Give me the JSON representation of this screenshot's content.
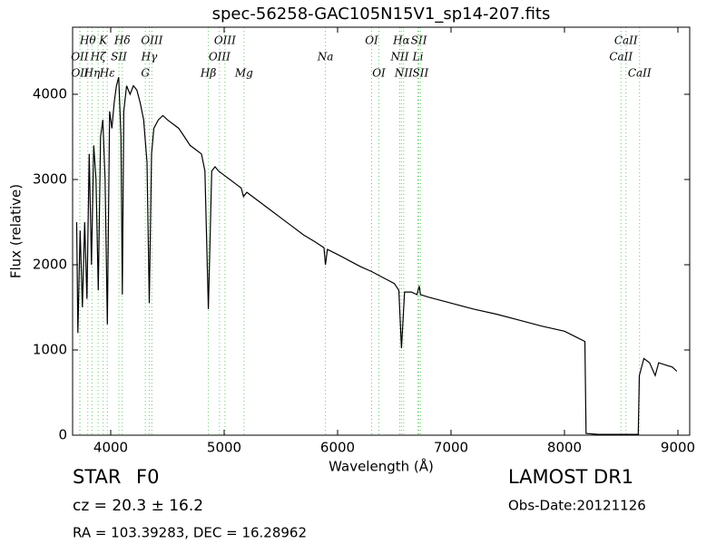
{
  "chart_data": {
    "type": "line",
    "title": "spec-56258-GAC105N15V1_sp14-207.fits",
    "x_label": "Wavelength (Å)",
    "y_label": "Flux (relative)",
    "xlim": [
      3664,
      9104
    ],
    "ylim": [
      0,
      4787
    ],
    "xticks": [
      4000,
      5000,
      6000,
      7000,
      8000,
      9000
    ],
    "yticks": [
      0,
      1000,
      2000,
      3000,
      4000
    ],
    "color": "#000000",
    "marker_color": "#66cc66",
    "x": [
      3700,
      3710,
      3730,
      3750,
      3770,
      3790,
      3810,
      3830,
      3850,
      3870,
      3890,
      3910,
      3930,
      3950,
      3970,
      3990,
      4010,
      4030,
      4050,
      4070,
      4090,
      4102,
      4115,
      4140,
      4170,
      4200,
      4230,
      4260,
      4290,
      4320,
      4340,
      4360,
      4380,
      4420,
      4460,
      4500,
      4550,
      4600,
      4650,
      4700,
      4750,
      4800,
      4830,
      4861,
      4890,
      4920,
      4950,
      5000,
      5050,
      5100,
      5150,
      5170,
      5200,
      5300,
      5400,
      5500,
      5600,
      5700,
      5800,
      5880,
      5893,
      5910,
      6000,
      6100,
      6200,
      6300,
      6400,
      6500,
      6540,
      6563,
      6590,
      6650,
      6700,
      6720,
      6730,
      6800,
      7000,
      7200,
      7400,
      7600,
      7800,
      8000,
      8180,
      8190,
      8300,
      8500,
      8650,
      8660,
      8700,
      8750,
      8800,
      8830,
      8900,
      8950,
      8990
    ],
    "values": [
      2500,
      1200,
      2400,
      1500,
      2500,
      1600,
      3300,
      2000,
      3400,
      3000,
      1700,
      3500,
      3700,
      3000,
      1300,
      3800,
      3600,
      3900,
      4100,
      4200,
      3500,
      1650,
      3800,
      4100,
      4000,
      4100,
      4050,
      3900,
      3700,
      3200,
      1550,
      3300,
      3600,
      3700,
      3750,
      3700,
      3650,
      3600,
      3500,
      3400,
      3350,
      3300,
      3100,
      1480,
      3100,
      3150,
      3100,
      3050,
      3000,
      2950,
      2900,
      2800,
      2850,
      2750,
      2650,
      2550,
      2450,
      2350,
      2270,
      2200,
      2000,
      2180,
      2120,
      2050,
      1980,
      1920,
      1850,
      1780,
      1700,
      1020,
      1680,
      1680,
      1650,
      1750,
      1650,
      1620,
      1550,
      1480,
      1420,
      1350,
      1280,
      1220,
      1100,
      20,
      10,
      10,
      10,
      700,
      900,
      850,
      700,
      850,
      820,
      800,
      750
    ],
    "lines": [
      [
        {
          "label": "Hθ",
          "x": 3798
        },
        {
          "label": "K",
          "x": 3934
        },
        {
          "label": "Hδ",
          "x": 4102
        },
        {
          "label": "OIII",
          "x": 4363
        },
        {
          "label": "OIII",
          "x": 5007
        },
        {
          "label": "OI",
          "x": 6300
        },
        {
          "label": "Hα",
          "x": 6563
        },
        {
          "label": "SII",
          "x": 6717
        },
        {
          "label": "CaII",
          "x": 8542
        }
      ],
      [
        {
          "label": "OII",
          "x": 3727
        },
        {
          "label": "Hζ",
          "x": 3889
        },
        {
          "label": "SII",
          "x": 4072
        },
        {
          "label": "Hγ",
          "x": 4340
        },
        {
          "label": "OIII",
          "x": 4959
        },
        {
          "label": "Na",
          "x": 5893
        },
        {
          "label": "NII",
          "x": 6548
        },
        {
          "label": "Li",
          "x": 6708
        },
        {
          "label": "CaII",
          "x": 8498
        }
      ],
      [
        {
          "label": "OII",
          "x": 3729
        },
        {
          "label": "Hη",
          "x": 3835
        },
        {
          "label": "Hε",
          "x": 3970
        },
        {
          "label": "G",
          "x": 4305
        },
        {
          "label": "Hβ",
          "x": 4861
        },
        {
          "label": "Mg",
          "x": 5175
        },
        {
          "label": "OI",
          "x": 6364
        },
        {
          "label": "NII",
          "x": 6583
        },
        {
          "label": "SII",
          "x": 6731
        },
        {
          "label": "CaII",
          "x": 8662
        }
      ]
    ],
    "object_class": "STAR",
    "subclass": "F0",
    "cz": "cz = 20.3 ± 16.2",
    "ra_dec": "RA = 103.39283, DEC = 16.28962",
    "survey": "LAMOST DR1",
    "obs_date": "Obs-Date:20121126"
  }
}
